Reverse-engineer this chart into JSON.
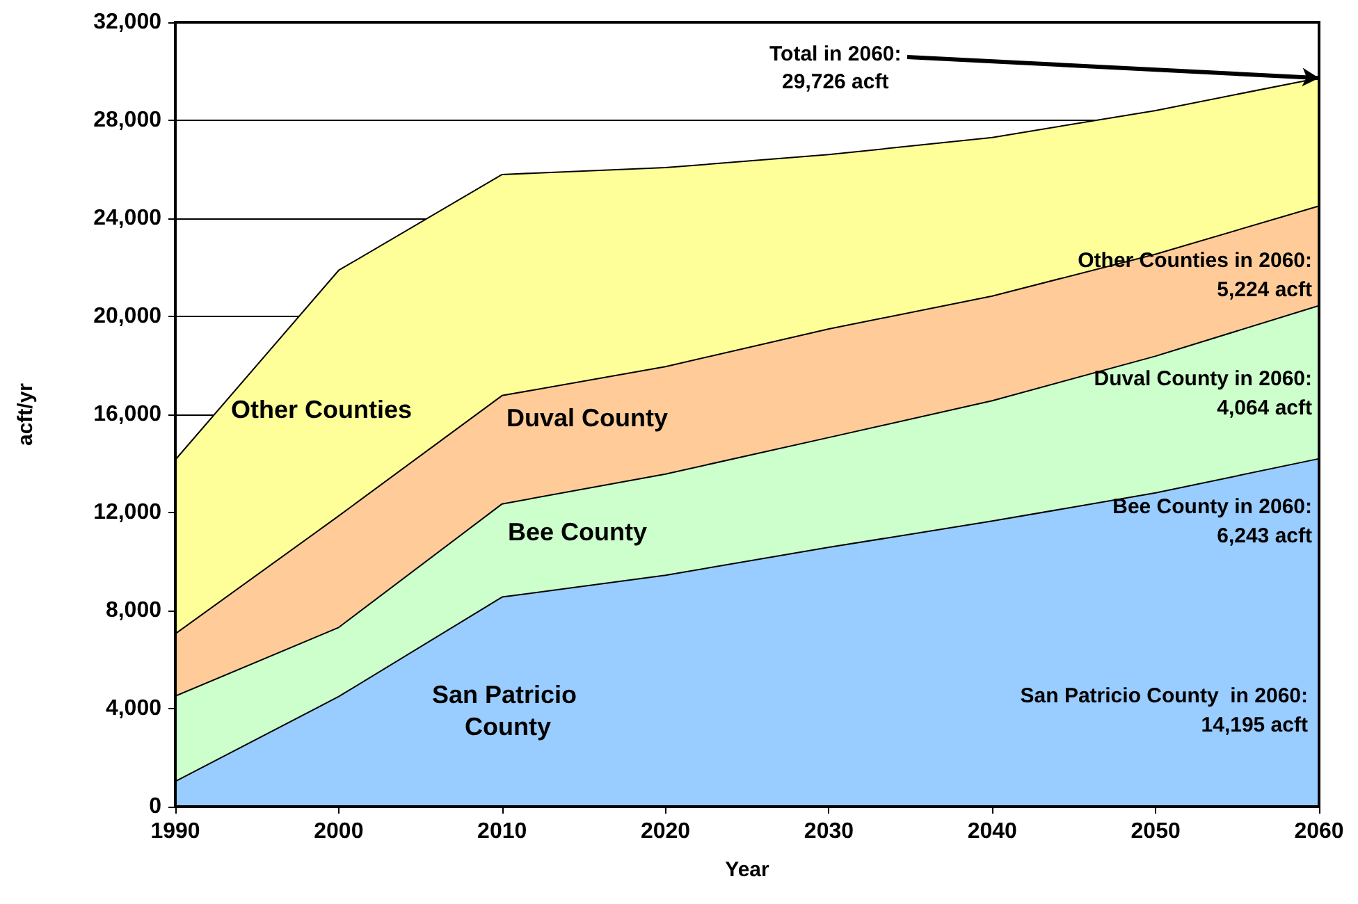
{
  "chart_data": {
    "type": "area",
    "stacked": true,
    "xlabel": "Year",
    "ylabel": "acft/yr",
    "x": [
      1990,
      2000,
      2010,
      2020,
      2030,
      2040,
      2050,
      2060
    ],
    "xlim": [
      1990,
      2060
    ],
    "xticks": [
      1990,
      2000,
      2010,
      2020,
      2030,
      2040,
      2050,
      2060
    ],
    "ylim": [
      0,
      32000
    ],
    "yticks": [
      {
        "value": 0,
        "label": "0"
      },
      {
        "value": 4000,
        "label": "4,000"
      },
      {
        "value": 8000,
        "label": "8,000"
      },
      {
        "value": 12000,
        "label": "12,000"
      },
      {
        "value": 16000,
        "label": "16,000"
      },
      {
        "value": 20000,
        "label": "20,000"
      },
      {
        "value": 24000,
        "label": "24,000"
      },
      {
        "value": 28000,
        "label": "28,000"
      },
      {
        "value": 32000,
        "label": "32,000"
      }
    ],
    "grid": "y",
    "series": [
      {
        "name": "San Patricio County",
        "color": "#99ccff",
        "values": [
          1030,
          4490,
          8550,
          9440,
          10580,
          11650,
          12800,
          14195
        ]
      },
      {
        "name": "Bee County",
        "color": "#ccffcc",
        "values": [
          3480,
          2820,
          3800,
          4130,
          4480,
          4910,
          5580,
          6243
        ]
      },
      {
        "name": "Duval County",
        "color": "#ffcc99",
        "values": [
          2540,
          4550,
          4420,
          4380,
          4430,
          4270,
          4160,
          4064
        ]
      },
      {
        "name": "Other Counties",
        "color": "#ffff99",
        "values": [
          7100,
          10020,
          9020,
          8120,
          7110,
          6470,
          5860,
          5224
        ]
      }
    ],
    "annotations": [
      {
        "text": "Total in 2060:\n29,726 acft",
        "x": 2060,
        "y": 29726
      },
      "Other Counties in 2060:\n5,224 acft",
      "Duval County in 2060:\n4,064 acft",
      "Bee County in 2060:\n6,243 acft",
      "San Patricio County  in 2060:\n14,195 acft"
    ]
  }
}
